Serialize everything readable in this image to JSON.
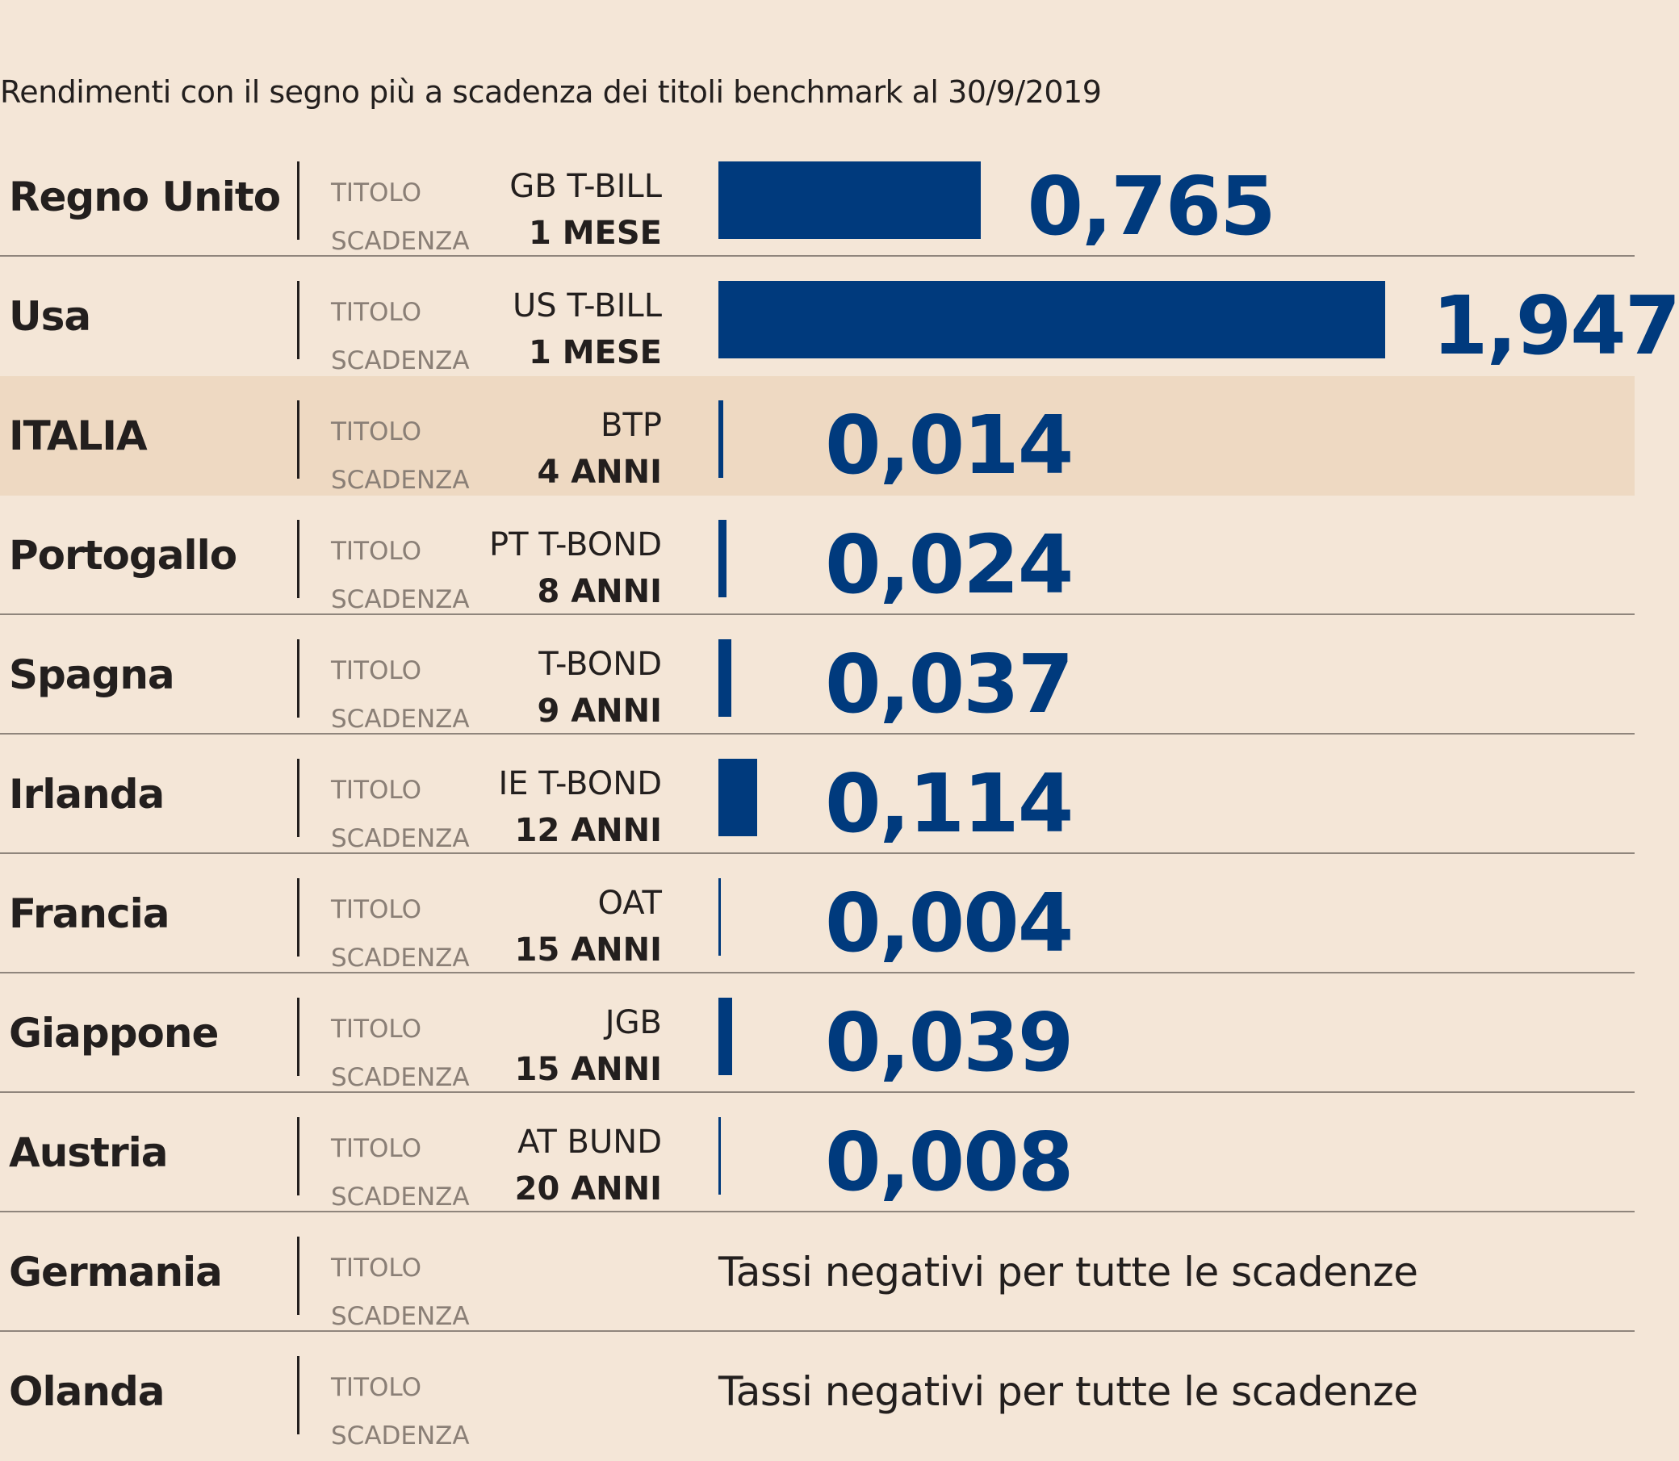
{
  "chart_data": {
    "type": "bar",
    "subtitle": "Rendimenti con il segno più a scadenza dei titoli benchmark al 30/9/2019",
    "label_titolo": "TITOLO",
    "label_scadenza": "SCADENZA",
    "bar_color": "#003a7d",
    "highlight_color": "#eed9c2",
    "xlim": [
      0,
      1.947
    ],
    "rows": [
      {
        "country": "Regno Unito",
        "titolo": "GB T-BILL",
        "scadenza": "1 MESE",
        "value": 0.765,
        "label": "0,765",
        "highlight": false,
        "note": ""
      },
      {
        "country": "Usa",
        "titolo": "US T-BILL",
        "scadenza": "1 MESE",
        "value": 1.947,
        "label": "1,947",
        "highlight": false,
        "note": ""
      },
      {
        "country": "ITALIA",
        "titolo": "BTP",
        "scadenza": "4 ANNI",
        "value": 0.014,
        "label": "0,014",
        "highlight": true,
        "note": ""
      },
      {
        "country": "Portogallo",
        "titolo": "PT T-BOND",
        "scadenza": "8 ANNI",
        "value": 0.024,
        "label": "0,024",
        "highlight": false,
        "note": ""
      },
      {
        "country": "Spagna",
        "titolo": "T-BOND",
        "scadenza": "9 ANNI",
        "value": 0.037,
        "label": "0,037",
        "highlight": false,
        "note": ""
      },
      {
        "country": "Irlanda",
        "titolo": "IE T-BOND",
        "scadenza": "12 ANNI",
        "value": 0.114,
        "label": "0,114",
        "highlight": false,
        "note": ""
      },
      {
        "country": "Francia",
        "titolo": "OAT",
        "scadenza": "15 ANNI",
        "value": 0.004,
        "label": "0,004",
        "highlight": false,
        "note": ""
      },
      {
        "country": "Giappone",
        "titolo": "JGB",
        "scadenza": "15 ANNI",
        "value": 0.039,
        "label": "0,039",
        "highlight": false,
        "note": ""
      },
      {
        "country": "Austria",
        "titolo": "AT BUND",
        "scadenza": "20 ANNI",
        "value": 0.008,
        "label": "0,008",
        "highlight": false,
        "note": ""
      },
      {
        "country": "Germania",
        "titolo": "",
        "scadenza": "",
        "value": null,
        "label": "",
        "highlight": false,
        "note": "Tassi negativi per tutte le scadenze"
      },
      {
        "country": "Olanda",
        "titolo": "",
        "scadenza": "",
        "value": null,
        "label": "",
        "highlight": false,
        "note": "Tassi negativi per tutte le scadenze"
      }
    ]
  }
}
